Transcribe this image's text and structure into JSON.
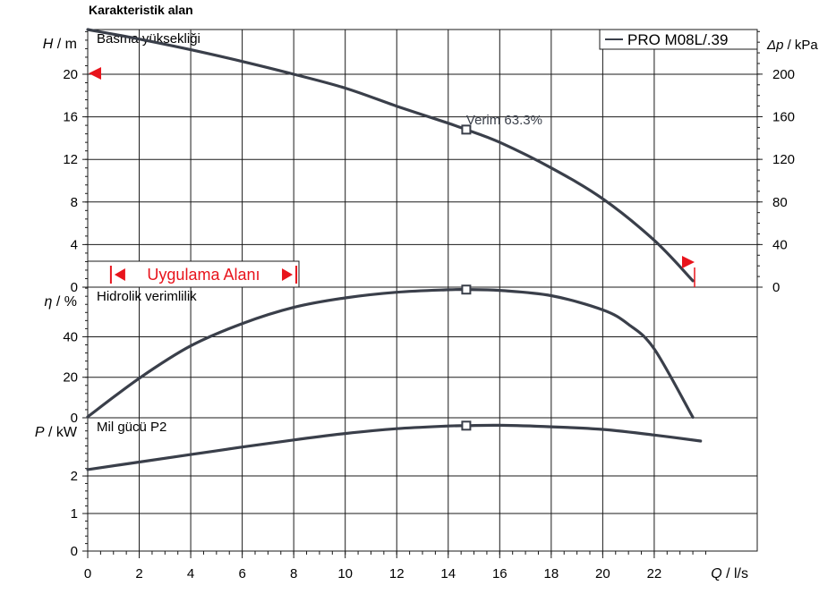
{
  "header": {
    "title": "Karakteristik alan"
  },
  "colors": {
    "curve": "#3a3f4a",
    "accent": "#e8141c",
    "grid": "#1a1a1a",
    "text": "#000000"
  },
  "legend": {
    "label": "PRO M08L/.39"
  },
  "x_axis": {
    "symbol": "Q",
    "unit": "l/s",
    "ticks": [
      0,
      2,
      4,
      6,
      8,
      10,
      12,
      14,
      16,
      18,
      20,
      22
    ],
    "min": 0,
    "max": 26
  },
  "application_range": {
    "label": "Uygulama Alanı",
    "q_min": 0.9,
    "q_max": 8.1
  },
  "duty_point": {
    "q": 14.7,
    "label": "Verim 63.3%"
  },
  "chart_data": [
    {
      "type": "line",
      "title": "Basma yüksekliği",
      "ylabel_symbol": "H",
      "ylabel_unit": "m",
      "y2label_symbol": "Δp",
      "y2label_unit": "kPa",
      "ylim": [
        0,
        24.2
      ],
      "y2lim": [
        0,
        241.9
      ],
      "yticks": [
        0,
        4,
        8,
        12,
        16,
        20
      ],
      "y2ticks": [
        0,
        40,
        80,
        120,
        160,
        200
      ],
      "series": [
        {
          "name": "PRO M08L/.39",
          "x": [
            0,
            2,
            4,
            6,
            8,
            10,
            12,
            14,
            14.7,
            16,
            18,
            20,
            22,
            23.5
          ],
          "values": [
            24.2,
            23.3,
            22.3,
            21.2,
            20.0,
            18.7,
            17.0,
            15.4,
            14.8,
            13.6,
            11.2,
            8.3,
            4.4,
            0.6
          ]
        }
      ],
      "markers": [
        {
          "x": 14.7,
          "y": 14.8
        }
      ]
    },
    {
      "type": "line",
      "title": "Hidrolik verimlilik",
      "ylabel_symbol": "η",
      "ylabel_unit": "%",
      "ylim": [
        0,
        64.5
      ],
      "yticks": [
        0,
        20,
        40
      ],
      "series": [
        {
          "x": [
            0,
            2,
            4,
            6,
            8,
            10,
            12,
            14,
            14.7,
            16,
            18,
            20,
            21,
            22,
            23.5
          ],
          "values": [
            0.5,
            19.5,
            35.5,
            46.5,
            54.5,
            59.2,
            62.0,
            63.2,
            63.3,
            62.9,
            60.3,
            53.3,
            46.1,
            34.0,
            0.2
          ]
        }
      ],
      "markers": [
        {
          "x": 14.7,
          "y": 63.3
        }
      ]
    },
    {
      "type": "line",
      "title": "Mil gücü P2",
      "ylabel_symbol": "P",
      "ylabel_unit": "kW",
      "ylim": [
        0,
        3.55
      ],
      "yticks": [
        0,
        1,
        2
      ],
      "series": [
        {
          "x": [
            0,
            2,
            4,
            6,
            8,
            10,
            12,
            14,
            14.7,
            16,
            18,
            20,
            22,
            23.8
          ],
          "values": [
            2.17,
            2.37,
            2.57,
            2.77,
            2.96,
            3.13,
            3.26,
            3.33,
            3.34,
            3.35,
            3.31,
            3.24,
            3.09,
            2.93
          ]
        }
      ],
      "markers": [
        {
          "x": 14.7,
          "y": 3.34
        }
      ]
    }
  ]
}
